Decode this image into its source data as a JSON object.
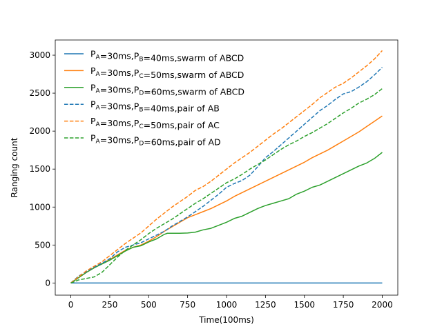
{
  "chart_data": {
    "type": "line",
    "xlabel": "Time(100ms)",
    "ylabel": "Ranging count",
    "xlim": [
      -100,
      2100
    ],
    "ylim": [
      -160,
      3200
    ],
    "xticks": [
      0,
      250,
      500,
      750,
      1000,
      1250,
      1500,
      1750,
      2000
    ],
    "yticks": [
      0,
      500,
      1000,
      1500,
      2000,
      2500,
      3000
    ],
    "grid": false,
    "legend_position": "top-left",
    "series": [
      {
        "name": "PA=30ms,PB=40ms,swarm of ABCD",
        "legend_parts": [
          [
            "P",
            ""
          ],
          [
            "A",
            "sub"
          ],
          [
            "=30ms,P",
            ""
          ],
          [
            "B",
            "sub"
          ],
          [
            "=40ms,swarm of ABCD",
            ""
          ]
        ],
        "color": "#1f77b4",
        "dash": "solid",
        "x": [
          0,
          2000
        ],
        "y": [
          0,
          0
        ]
      },
      {
        "name": "PA=30ms,PC=50ms,swarm of ABCD",
        "legend_parts": [
          [
            "P",
            ""
          ],
          [
            "A",
            "sub"
          ],
          [
            "=30ms,P",
            ""
          ],
          [
            "C",
            "sub"
          ],
          [
            "=50ms,swarm of ABCD",
            ""
          ]
        ],
        "color": "#ff7f0e",
        "dash": "solid",
        "x": [
          0,
          50,
          100,
          150,
          200,
          250,
          300,
          350,
          400,
          450,
          500,
          550,
          600,
          650,
          700,
          750,
          800,
          850,
          900,
          950,
          1000,
          1050,
          1100,
          1150,
          1200,
          1250,
          1300,
          1350,
          1400,
          1450,
          1500,
          1550,
          1600,
          1650,
          1700,
          1750,
          1800,
          1850,
          1900,
          1950,
          2000
        ],
        "y": [
          0,
          70,
          140,
          200,
          255,
          310,
          370,
          430,
          470,
          500,
          550,
          610,
          680,
          740,
          800,
          860,
          900,
          940,
          980,
          1030,
          1080,
          1140,
          1190,
          1240,
          1290,
          1340,
          1390,
          1440,
          1490,
          1540,
          1590,
          1650,
          1700,
          1750,
          1810,
          1870,
          1930,
          1990,
          2060,
          2130,
          2200
        ]
      },
      {
        "name": "PA=30ms,PD=60ms,swarm of ABCD",
        "legend_parts": [
          [
            "P",
            ""
          ],
          [
            "A",
            "sub"
          ],
          [
            "=30ms,P",
            ""
          ],
          [
            "D",
            "sub"
          ],
          [
            "=60ms,swarm of ABCD",
            ""
          ]
        ],
        "color": "#2ca02c",
        "dash": "solid",
        "x": [
          0,
          50,
          100,
          150,
          200,
          250,
          300,
          350,
          400,
          450,
          500,
          550,
          600,
          620,
          650,
          700,
          750,
          800,
          850,
          900,
          950,
          1000,
          1050,
          1100,
          1150,
          1200,
          1250,
          1300,
          1350,
          1400,
          1450,
          1500,
          1550,
          1600,
          1650,
          1700,
          1750,
          1800,
          1850,
          1900,
          1950,
          2000
        ],
        "y": [
          0,
          70,
          140,
          200,
          250,
          300,
          360,
          420,
          470,
          490,
          540,
          580,
          640,
          655,
          655,
          655,
          658,
          670,
          700,
          720,
          760,
          800,
          850,
          880,
          930,
          980,
          1020,
          1050,
          1080,
          1110,
          1170,
          1210,
          1260,
          1290,
          1340,
          1390,
          1440,
          1490,
          1540,
          1580,
          1640,
          1720
        ]
      },
      {
        "name": "PA=30ms,PB=40ms,pair of AB",
        "legend_parts": [
          [
            "P",
            ""
          ],
          [
            "A",
            "sub"
          ],
          [
            "=30ms,P",
            ""
          ],
          [
            "B",
            "sub"
          ],
          [
            "=40ms,pair of AB",
            ""
          ]
        ],
        "color": "#1f77b4",
        "dash": "dashed",
        "x": [
          0,
          50,
          100,
          150,
          200,
          250,
          300,
          350,
          400,
          450,
          500,
          550,
          600,
          650,
          700,
          750,
          800,
          850,
          900,
          950,
          1000,
          1050,
          1100,
          1150,
          1200,
          1250,
          1300,
          1350,
          1400,
          1450,
          1500,
          1550,
          1600,
          1650,
          1700,
          1750,
          1800,
          1850,
          1900,
          1950,
          2000
        ],
        "y": [
          0,
          90,
          150,
          210,
          260,
          320,
          410,
          470,
          500,
          530,
          580,
          630,
          680,
          750,
          810,
          870,
          940,
          1010,
          1090,
          1170,
          1260,
          1310,
          1350,
          1420,
          1530,
          1650,
          1730,
          1820,
          1910,
          2000,
          2090,
          2180,
          2270,
          2340,
          2420,
          2490,
          2520,
          2580,
          2650,
          2740,
          2840
        ]
      },
      {
        "name": "PA=30ms,PC=50ms,pair of AC",
        "legend_parts": [
          [
            "P",
            ""
          ],
          [
            "A",
            "sub"
          ],
          [
            "=30ms,P",
            ""
          ],
          [
            "C",
            "sub"
          ],
          [
            "=50ms,pair of AC",
            ""
          ]
        ],
        "color": "#ff7f0e",
        "dash": "dashed",
        "x": [
          0,
          50,
          100,
          150,
          200,
          250,
          300,
          350,
          400,
          450,
          500,
          550,
          600,
          650,
          700,
          750,
          800,
          850,
          900,
          950,
          1000,
          1050,
          1100,
          1150,
          1200,
          1250,
          1300,
          1350,
          1400,
          1450,
          1500,
          1550,
          1600,
          1650,
          1700,
          1750,
          1800,
          1850,
          1900,
          1950,
          2000
        ],
        "y": [
          0,
          80,
          160,
          220,
          280,
          360,
          440,
          520,
          590,
          660,
          750,
          840,
          920,
          1000,
          1070,
          1140,
          1220,
          1270,
          1340,
          1420,
          1500,
          1580,
          1650,
          1720,
          1800,
          1880,
          1960,
          2030,
          2110,
          2190,
          2270,
          2350,
          2440,
          2510,
          2580,
          2630,
          2700,
          2780,
          2860,
          2950,
          3060
        ]
      },
      {
        "name": "PA=30ms,PD=60ms,pair of AD",
        "legend_parts": [
          [
            "P",
            ""
          ],
          [
            "A",
            "sub"
          ],
          [
            "=30ms,P",
            ""
          ],
          [
            "D",
            "sub"
          ],
          [
            "=60ms,pair of AD",
            ""
          ]
        ],
        "color": "#2ca02c",
        "dash": "dashed",
        "x": [
          0,
          50,
          100,
          150,
          200,
          250,
          300,
          350,
          400,
          450,
          500,
          550,
          600,
          650,
          700,
          750,
          800,
          850,
          900,
          950,
          1000,
          1050,
          1100,
          1150,
          1200,
          1250,
          1300,
          1350,
          1400,
          1450,
          1500,
          1550,
          1600,
          1650,
          1700,
          1750,
          1800,
          1850,
          1900,
          1950,
          2000
        ],
        "y": [
          0,
          40,
          60,
          80,
          140,
          240,
          340,
          430,
          500,
          570,
          650,
          720,
          780,
          840,
          910,
          980,
          1050,
          1110,
          1180,
          1250,
          1320,
          1370,
          1430,
          1500,
          1560,
          1620,
          1690,
          1760,
          1820,
          1870,
          1930,
          1980,
          2040,
          2100,
          2170,
          2240,
          2300,
          2370,
          2420,
          2480,
          2560
        ]
      }
    ]
  }
}
